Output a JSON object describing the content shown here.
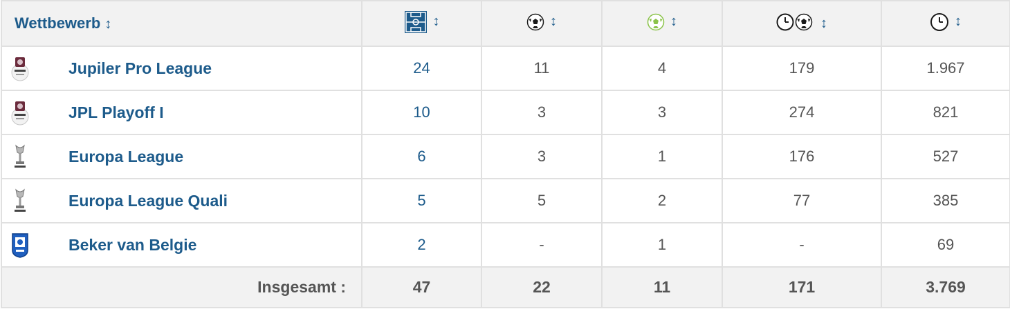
{
  "header": {
    "competition_label": "Wettbewerb",
    "sort_glyph": "↕",
    "columns": [
      {
        "icon": "pitch-icon",
        "meaning": "appearances"
      },
      {
        "icon": "ball-icon",
        "meaning": "goals"
      },
      {
        "icon": "assist-ball-icon",
        "meaning": "assists"
      },
      {
        "icon": "clock-ball-icon",
        "meaning": "minutes per goal"
      },
      {
        "icon": "clock-icon",
        "meaning": "minutes played"
      }
    ]
  },
  "rows": [
    {
      "logo": "jupiler-pro-league-logo",
      "competition": "Jupiler Pro League",
      "apps": "24",
      "goals": "11",
      "assists": "4",
      "min_per_goal": "179",
      "minutes": "1.967"
    },
    {
      "logo": "jpl-playoff-logo",
      "competition": "JPL Playoff I",
      "apps": "10",
      "goals": "3",
      "assists": "3",
      "min_per_goal": "274",
      "minutes": "821"
    },
    {
      "logo": "europa-league-logo",
      "competition": "Europa League",
      "apps": "6",
      "goals": "3",
      "assists": "1",
      "min_per_goal": "176",
      "minutes": "527"
    },
    {
      "logo": "europa-league-quali-logo",
      "competition": "Europa League Quali",
      "apps": "5",
      "goals": "5",
      "assists": "2",
      "min_per_goal": "77",
      "minutes": "385"
    },
    {
      "logo": "beker-van-belgie-logo",
      "competition": "Beker van Belgie",
      "apps": "2",
      "goals": "-",
      "assists": "1",
      "min_per_goal": "-",
      "minutes": "69"
    }
  ],
  "total": {
    "label": "Insgesamt :",
    "apps": "47",
    "goals": "22",
    "assists": "11",
    "min_per_goal": "171",
    "minutes": "3.769"
  },
  "colors": {
    "link": "#1d5b8b",
    "header_bg": "#f2f2f2",
    "border": "#e0e0e0",
    "text": "#555555",
    "assist_green": "#8bc34a"
  }
}
